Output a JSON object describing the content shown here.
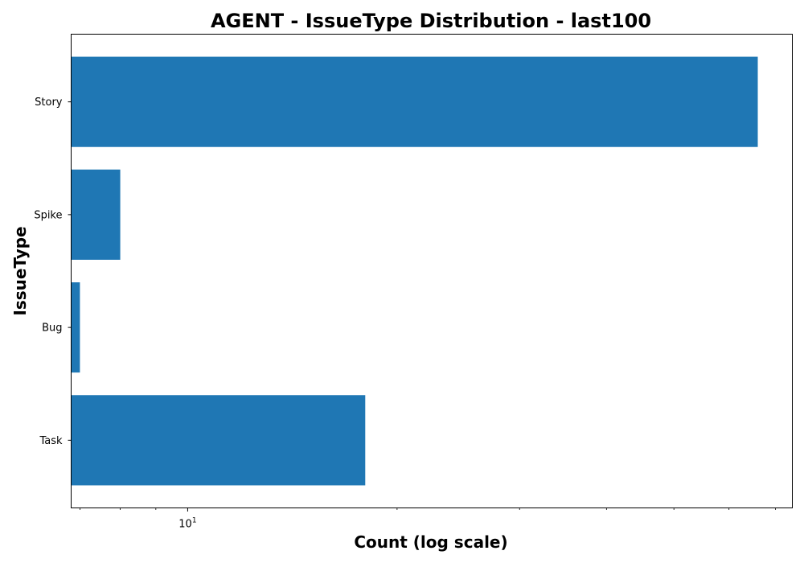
{
  "chart_data": {
    "type": "bar",
    "orientation": "horizontal",
    "title": "AGENT - IssueType Distribution - last100",
    "xlabel": "Count (log scale)",
    "ylabel": "IssueType",
    "x_scale": "log",
    "xlim": [
      6.8,
      74
    ],
    "categories": [
      "Story",
      "Spike",
      "Bug",
      "Task"
    ],
    "values": [
      66,
      8,
      7,
      18
    ],
    "x_ticks": [
      {
        "value": 10,
        "base": "10",
        "exponent": "1"
      }
    ],
    "x_minor_ticks": [
      7,
      8,
      9,
      20,
      30,
      40,
      50,
      60,
      70
    ],
    "grid": false,
    "bar_color": "#1f77b4"
  }
}
